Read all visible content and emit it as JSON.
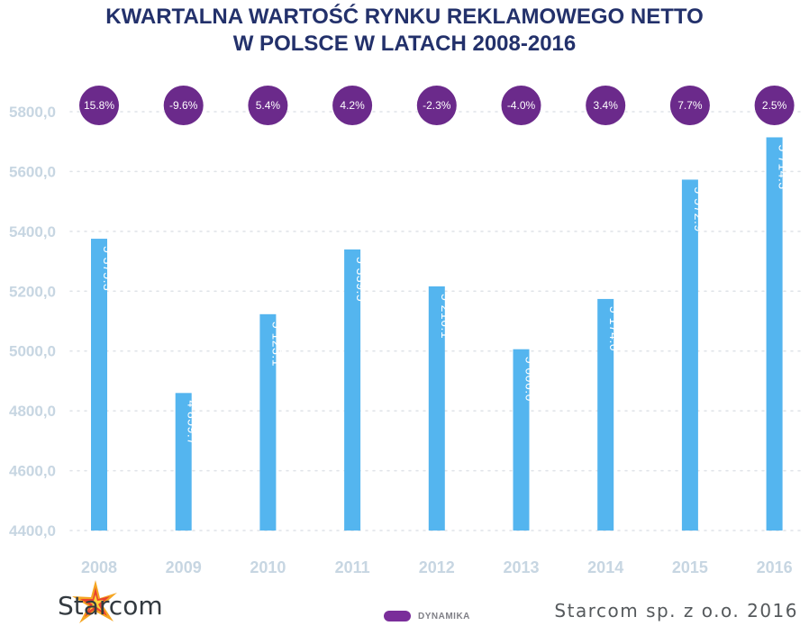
{
  "header": {
    "title_line1": "KWARTALNA WARTOŚĆ RYNKU REKLAMOWEGO NETTO",
    "title_line2": "W POLSCE W LATACH 2008-2016"
  },
  "chart_data": {
    "type": "bar",
    "title": "KWARTALNA WARTOŚĆ RYNKU REKLAMOWEGO NETTO W POLSCE W LATACH 2008-2016",
    "categories": [
      "2008",
      "2009",
      "2010",
      "2011",
      "2012",
      "2013",
      "2014",
      "2015",
      "2016"
    ],
    "values": [
      5375.3,
      4859.7,
      5123.1,
      5339.5,
      5216.1,
      5006.0,
      5174.0,
      5572.9,
      5714.3
    ],
    "value_labels": [
      "5 375.3",
      "4 859.7",
      "5 123.1",
      "5 339.5",
      "5 216.1",
      "5 006.0",
      "5 174.0",
      "5 572.9",
      "5 714.3"
    ],
    "dynamics": [
      "15.8%",
      "-9.6%",
      "5.4%",
      "4.2%",
      "-2.3%",
      "-4.0%",
      "3.4%",
      "7.7%",
      "2.5%"
    ],
    "ylim": [
      4400,
      5800
    ],
    "yticks": [
      4400,
      4600,
      4800,
      5000,
      5200,
      5400,
      5600,
      5800
    ],
    "ytick_labels": [
      "4400,0",
      "4600,0",
      "4800,0",
      "5000,0",
      "5200,0",
      "5400,0",
      "5600,0",
      "5800,0"
    ],
    "xlabel": "",
    "ylabel": "",
    "grid": true,
    "colors": {
      "bar": "#54b5ef",
      "dynamics": "#6b2a8b",
      "tick": "#c7d6e2"
    }
  },
  "legend": {
    "label": "DYNAMIKA",
    "color": "#7a2e9a"
  },
  "brand": {
    "name": "Starcom"
  },
  "footer": {
    "credit": "Starcom sp. z o.o. 2016"
  }
}
